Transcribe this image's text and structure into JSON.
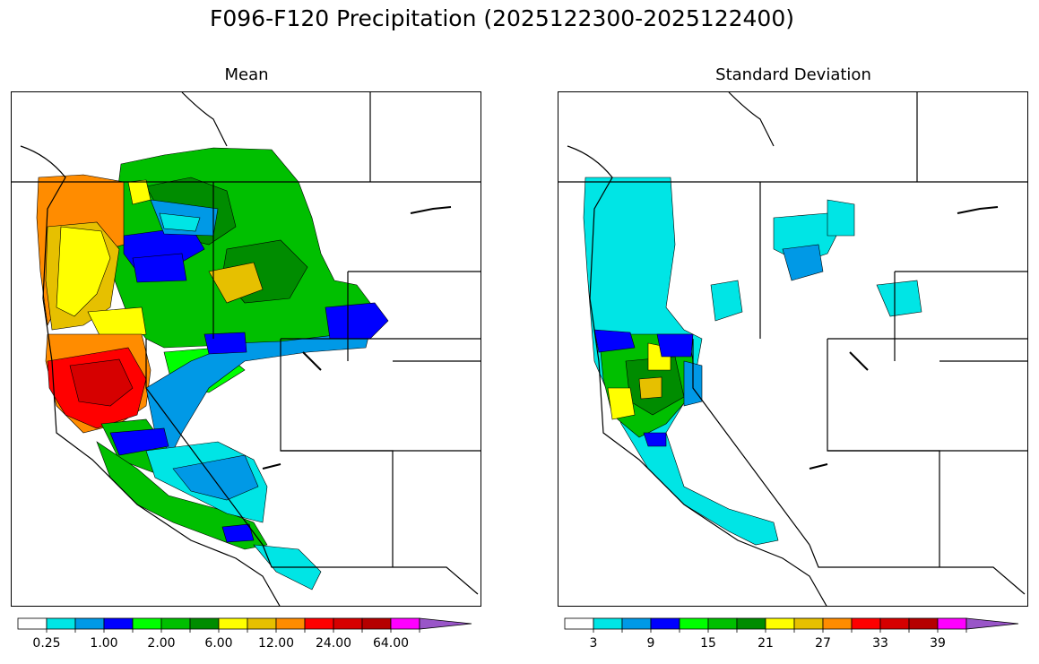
{
  "title": "F096-F120 Precipitation (2025122300-2025122400)",
  "colors": {
    "scale": [
      "#ffffff",
      "#00e5e5",
      "#0099e6",
      "#0000ff",
      "#00ff00",
      "#00bf00",
      "#008c00",
      "#ffff00",
      "#e6c000",
      "#ff8c00",
      "#ff0000",
      "#d60000",
      "#b50000",
      "#ff00ff",
      "#9955c8"
    ],
    "border": "#000000"
  },
  "panels": [
    {
      "id": "mean",
      "title": "Mean",
      "colorbar": {
        "tick_labels": [
          "0.25",
          "1.00",
          "2.00",
          "6.00",
          "12.00",
          "24.00",
          "64.00"
        ]
      }
    },
    {
      "id": "std",
      "title": "Standard Deviation",
      "colorbar": {
        "tick_labels": [
          "3",
          "9",
          "15",
          "21",
          "27",
          "33",
          "39"
        ]
      }
    }
  ]
}
